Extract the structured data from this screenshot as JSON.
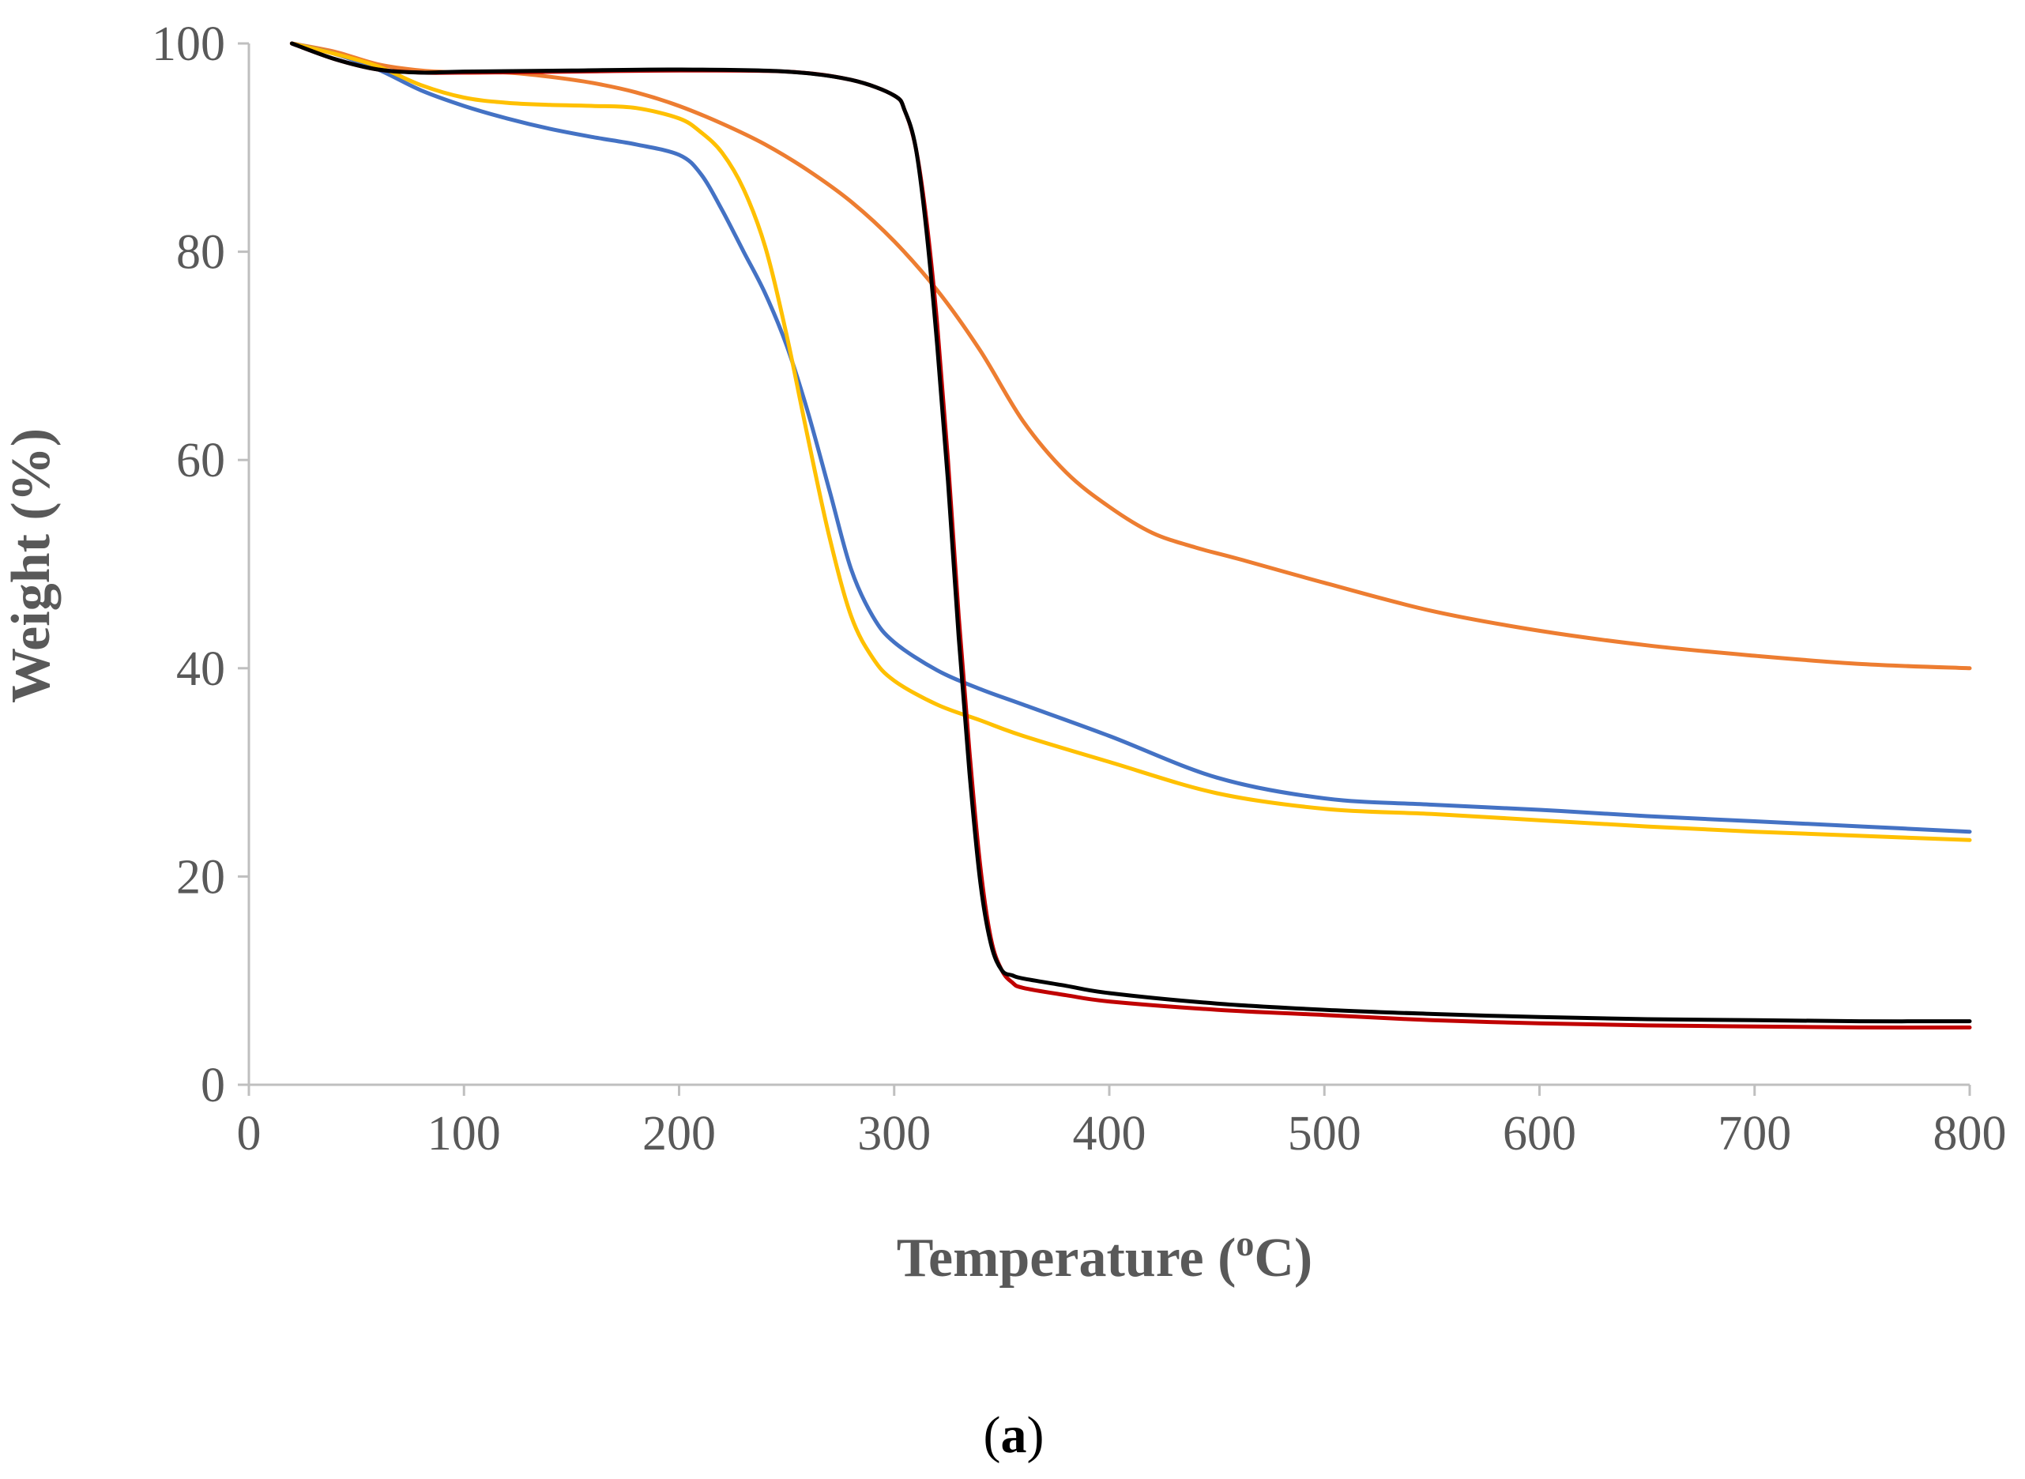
{
  "chart_data": {
    "type": "line",
    "title": "",
    "xlabel": "Temperature (",
    "xlabel_sup": "o",
    "xlabel_unit": "C)",
    "ylabel": "Weight (%)",
    "xlim": [
      0,
      800
    ],
    "ylim": [
      0,
      100
    ],
    "xticks": [
      0,
      100,
      200,
      300,
      400,
      500,
      600,
      700,
      800
    ],
    "yticks": [
      0,
      20,
      40,
      60,
      80,
      100
    ],
    "grid": false,
    "legend": "none",
    "series": [
      {
        "name": "orange",
        "color": "#ED7D31",
        "x": [
          20,
          40,
          60,
          80,
          100,
          120,
          140,
          160,
          180,
          200,
          220,
          240,
          260,
          280,
          300,
          320,
          340,
          360,
          380,
          400,
          420,
          440,
          460,
          500,
          550,
          600,
          650,
          700,
          750,
          800
        ],
        "y": [
          100,
          99.2,
          98,
          97.4,
          97.2,
          97.2,
          96.8,
          96.2,
          95.3,
          94,
          92.3,
          90.3,
          87.8,
          84.8,
          81,
          76.3,
          70.5,
          63.7,
          58.8,
          55.5,
          53,
          51.6,
          50.5,
          48.2,
          45.5,
          43.6,
          42.2,
          41.2,
          40.4,
          40
        ]
      },
      {
        "name": "blue",
        "color": "#4472C4",
        "x": [
          20,
          40,
          60,
          80,
          100,
          120,
          140,
          160,
          180,
          200,
          210,
          220,
          230,
          240,
          250,
          260,
          270,
          280,
          290,
          300,
          320,
          340,
          360,
          400,
          450,
          500,
          550,
          600,
          650,
          700,
          750,
          800
        ],
        "y": [
          100,
          99,
          97.5,
          95.5,
          94,
          92.8,
          91.8,
          91,
          90.3,
          89.3,
          87.5,
          84,
          80,
          76,
          71,
          64.5,
          57,
          49.5,
          45,
          42.5,
          39.8,
          38,
          36.5,
          33.5,
          29.5,
          27.5,
          26.9,
          26.4,
          25.8,
          25.3,
          24.8,
          24.3
        ]
      },
      {
        "name": "yellow",
        "color": "#FFC000",
        "x": [
          20,
          40,
          60,
          80,
          100,
          120,
          140,
          160,
          180,
          200,
          210,
          220,
          230,
          240,
          250,
          260,
          270,
          280,
          290,
          300,
          320,
          340,
          360,
          400,
          450,
          500,
          550,
          600,
          650,
          700,
          750,
          800
        ],
        "y": [
          100,
          99,
          97.8,
          96,
          94.8,
          94.3,
          94.1,
          94,
          93.8,
          92.8,
          91.5,
          89.5,
          86,
          80.5,
          72,
          62,
          52.5,
          45,
          41,
          38.8,
          36.5,
          35,
          33.5,
          31,
          28,
          26.5,
          26,
          25.4,
          24.8,
          24.3,
          23.9,
          23.5
        ]
      },
      {
        "name": "red",
        "color": "#C00000",
        "x": [
          20,
          40,
          60,
          80,
          100,
          150,
          200,
          250,
          280,
          300,
          305,
          310,
          315,
          320,
          325,
          330,
          335,
          340,
          345,
          350,
          355,
          360,
          380,
          400,
          450,
          500,
          550,
          600,
          650,
          700,
          750,
          800
        ],
        "y": [
          100,
          98.5,
          97.5,
          97.2,
          97.2,
          97.3,
          97.4,
          97.3,
          96.5,
          95,
          93.5,
          90,
          83,
          73,
          60,
          45,
          32,
          21,
          14,
          11,
          9.8,
          9.3,
          8.6,
          8,
          7.2,
          6.7,
          6.2,
          5.9,
          5.7,
          5.6,
          5.5,
          5.5
        ]
      },
      {
        "name": "black",
        "color": "#000000",
        "x": [
          20,
          40,
          60,
          80,
          100,
          150,
          200,
          250,
          280,
          300,
          305,
          310,
          315,
          320,
          325,
          330,
          335,
          340,
          345,
          350,
          355,
          360,
          380,
          400,
          450,
          500,
          550,
          600,
          650,
          700,
          750,
          800
        ],
        "y": [
          100,
          98.5,
          97.5,
          97.2,
          97.3,
          97.4,
          97.5,
          97.3,
          96.5,
          95,
          93.5,
          90,
          82,
          71,
          58,
          43,
          30,
          19.5,
          13.5,
          11,
          10.5,
          10.2,
          9.5,
          8.8,
          7.8,
          7.2,
          6.8,
          6.5,
          6.3,
          6.2,
          6.1,
          6.1
        ]
      }
    ]
  },
  "caption": {
    "open": "(",
    "letter": "a",
    "close": ")"
  }
}
